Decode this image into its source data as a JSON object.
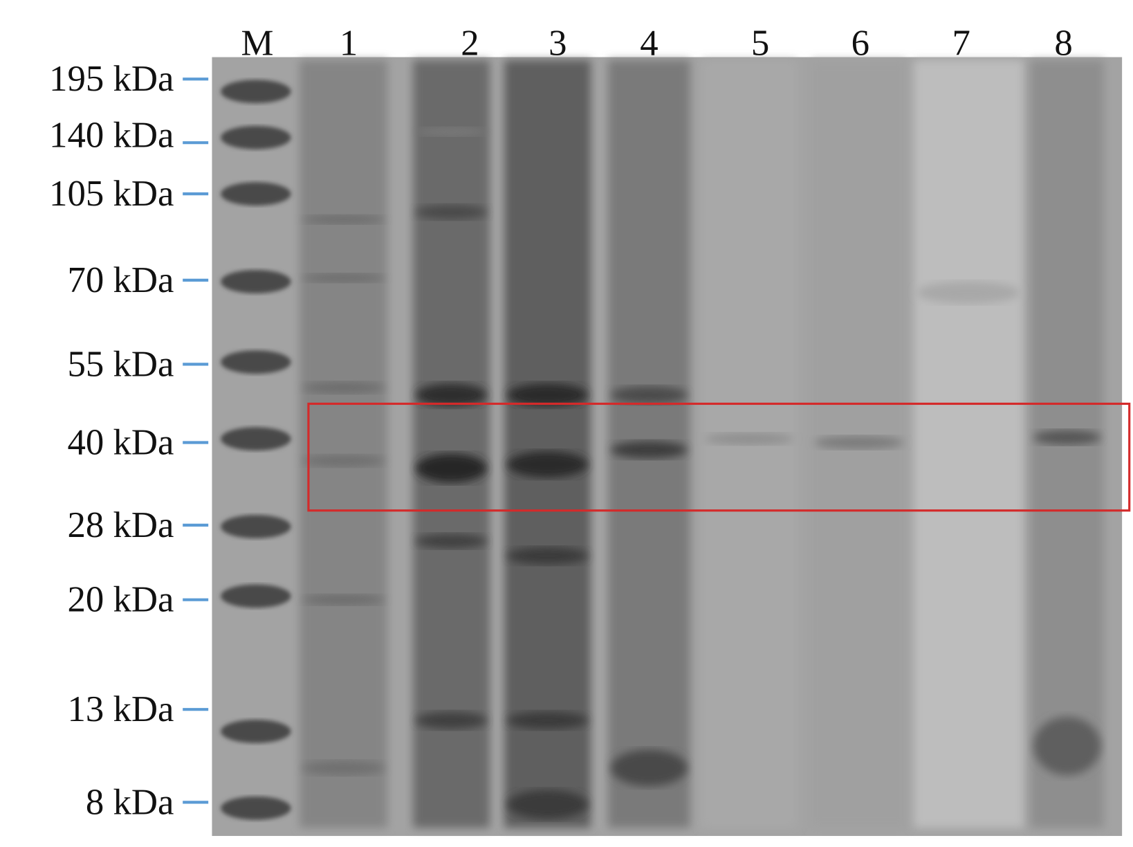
{
  "lanes": [
    "M",
    "1",
    "2",
    "3",
    "4",
    "5",
    "6",
    "7",
    "8"
  ],
  "markers": [
    "195 kDa",
    "140 kDa",
    "105 kDa",
    "70 kDa",
    "55 kDa",
    "40 kDa",
    "28 kDa",
    "20 kDa",
    "13 kDa",
    "8 kDa"
  ],
  "colors": {
    "tick": "#5b9bd5",
    "highlight_box": "#d42a2a",
    "gel_background": "#a3a3a3"
  },
  "highlight_region": {
    "from_kDa": "~45",
    "to_kDa": "~30",
    "lanes": "1-8"
  }
}
